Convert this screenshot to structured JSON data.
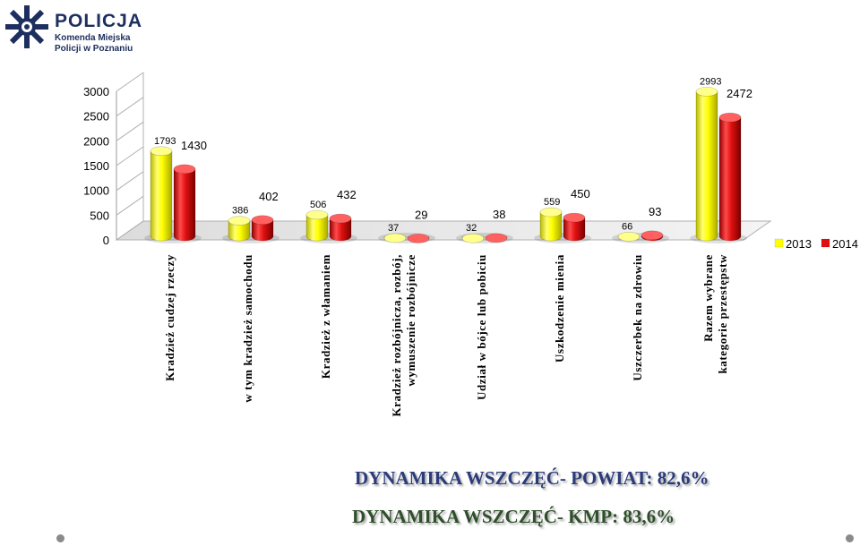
{
  "logo": {
    "brand": "POLICJA",
    "line1": "Komenda Miejska",
    "line2": "Policji w Poznaniu"
  },
  "colors": {
    "series2013": "#ffff00",
    "series2014": "#e01010",
    "text_blue": "#2b3c7a"
  },
  "chart_data": {
    "type": "bar",
    "categories": [
      "Kradzież cudzej rzeczy",
      "w tym kradzież samochodu",
      "Kradzież z włamaniem",
      "Kradzież rozbójnicza, rozbój, wymuszenie rozbójnicze",
      "Udział w bójce lub pobiciu",
      "Uszkodzenie mienia",
      "Uszczerbek na zdrowiu",
      "Razem wybrane kategorie przestępstw"
    ],
    "series": [
      {
        "name": "2013",
        "values": [
          1793,
          386,
          506,
          37,
          32,
          559,
          66,
          2993
        ]
      },
      {
        "name": "2014",
        "values": [
          1430,
          402,
          432,
          29,
          38,
          450,
          93,
          2472
        ]
      }
    ],
    "ylim": [
      0,
      3000
    ],
    "yticks": [
      0,
      500,
      1000,
      1500,
      2000,
      2500,
      3000
    ],
    "legend_position": "right",
    "grid": false,
    "style": "3d"
  },
  "footer": {
    "line1": "DYNAMIKA WSZCZĘĆ- POWIAT: 82,6%",
    "line2": "DYNAMIKA WSZCZĘĆ- KMP: 83,6%"
  }
}
